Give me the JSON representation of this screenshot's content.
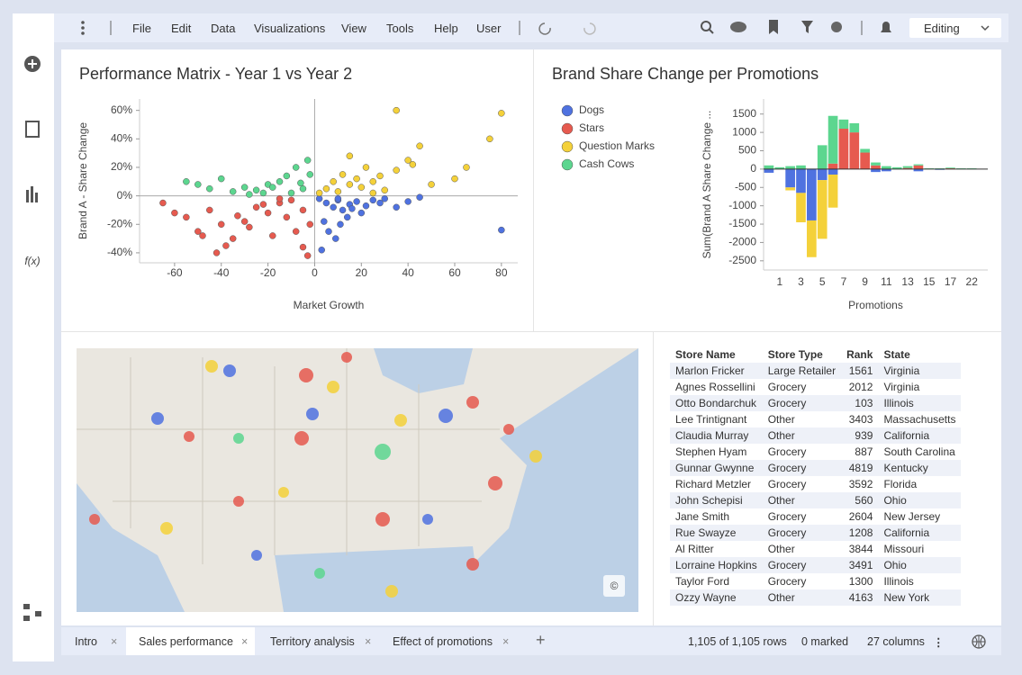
{
  "menu": {
    "items": [
      "File",
      "Edit",
      "Data",
      "Visualizations",
      "View",
      "Tools",
      "Help",
      "User"
    ],
    "mode": "Editing"
  },
  "chart_data": [
    {
      "type": "scatter",
      "title": "Performance Matrix - Year 1 vs Year 2",
      "x_label": "Market Growth",
      "y_label": "Brand A - Share Change",
      "xlim": [
        -75,
        87
      ],
      "xticks": [
        -60,
        -40,
        -20,
        0,
        20,
        40,
        60,
        80
      ],
      "ylim": [
        -47,
        68
      ],
      "yticks": [
        {
          "value": 60,
          "label": "60%"
        },
        {
          "value": 40,
          "label": "40%"
        },
        {
          "value": 20,
          "label": "20%"
        },
        {
          "value": 0,
          "label": "0%"
        },
        {
          "value": -20,
          "label": "-20%"
        },
        {
          "value": -40,
          "label": "-40%"
        }
      ],
      "series": [
        {
          "name": "Dogs",
          "color": "#4f72e0",
          "x": [
            2,
            5,
            8,
            10,
            12,
            15,
            18,
            20,
            22,
            25,
            28,
            30,
            35,
            4,
            6,
            14,
            9,
            3,
            11,
            16,
            40,
            80,
            10,
            45
          ],
          "y": [
            -2,
            -5,
            -8,
            -3,
            -10,
            -6,
            -4,
            -12,
            -7,
            -3,
            -5,
            -2,
            -8,
            -18,
            -25,
            -15,
            -30,
            -38,
            -20,
            -9,
            -4,
            -24,
            -2,
            -1
          ]
        },
        {
          "name": "Stars",
          "color": "#e65a4f",
          "x": [
            -65,
            -55,
            -50,
            -45,
            -40,
            -35,
            -30,
            -25,
            -20,
            -15,
            -10,
            -5,
            -2,
            -8,
            -12,
            -18,
            -22,
            -28,
            -38,
            -48,
            -60,
            -42,
            -5,
            -3,
            -15,
            -33
          ],
          "y": [
            -5,
            -15,
            -25,
            -10,
            -20,
            -30,
            -18,
            -8,
            -12,
            -5,
            -3,
            -10,
            -20,
            -25,
            -15,
            -28,
            -6,
            -22,
            -35,
            -28,
            -12,
            -40,
            -36,
            -42,
            -2,
            -14
          ]
        },
        {
          "name": "Question Marks",
          "color": "#f4d13a",
          "x": [
            2,
            5,
            8,
            10,
            12,
            15,
            18,
            20,
            22,
            25,
            28,
            30,
            35,
            40,
            45,
            50,
            60,
            65,
            75,
            80,
            35,
            42,
            15,
            25
          ],
          "y": [
            2,
            5,
            10,
            3,
            15,
            8,
            12,
            6,
            20,
            10,
            14,
            4,
            18,
            25,
            35,
            8,
            12,
            20,
            40,
            58,
            60,
            22,
            28,
            2
          ]
        },
        {
          "name": "Cash Cows",
          "color": "#5cd68f",
          "x": [
            -55,
            -50,
            -45,
            -40,
            -35,
            -30,
            -25,
            -20,
            -15,
            -10,
            -5,
            -2,
            -8,
            -12,
            -18,
            -22,
            -28,
            -3,
            -6
          ],
          "y": [
            10,
            8,
            5,
            12,
            3,
            6,
            4,
            8,
            10,
            2,
            5,
            15,
            20,
            14,
            6,
            2,
            1,
            25,
            9
          ]
        }
      ]
    },
    {
      "type": "bar",
      "title": "Brand Share Change per Promotions",
      "x_label": "Promotions",
      "y_label": "Sum(Brand A Share Change ...",
      "categories": [
        null,
        "1",
        null,
        "3",
        null,
        "5",
        null,
        "7",
        null,
        "9",
        null,
        "11",
        null,
        "13",
        null,
        "15",
        null,
        "17",
        null,
        "22",
        null
      ],
      "ylim": [
        -2750,
        1910
      ],
      "yticks": [
        1500,
        1000,
        500,
        0,
        -500,
        -1000,
        -1500,
        -2000,
        -2500
      ],
      "series": [
        {
          "name": "Dogs",
          "color": "#4f72e0",
          "values": [
            -100,
            0,
            -500,
            -650,
            -1400,
            -300,
            -150,
            0,
            0,
            0,
            -80,
            -60,
            0,
            0,
            -60,
            0,
            -20,
            0,
            0,
            0,
            0
          ]
        },
        {
          "name": "Stars",
          "color": "#e65a4f",
          "values": [
            0,
            0,
            0,
            0,
            0,
            0,
            150,
            1100,
            1000,
            450,
            100,
            0,
            0,
            30,
            100,
            0,
            0,
            20,
            0,
            0,
            0
          ]
        },
        {
          "name": "Question Marks",
          "color": "#f4d13a",
          "values": [
            0,
            0,
            -80,
            -800,
            -1000,
            -1600,
            -900,
            0,
            0,
            0,
            0,
            0,
            0,
            0,
            0,
            0,
            0,
            0,
            0,
            0,
            0
          ]
        },
        {
          "name": "Cash Cows",
          "color": "#5cd68f",
          "values": [
            100,
            50,
            80,
            100,
            0,
            650,
            1300,
            250,
            250,
            100,
            80,
            80,
            50,
            50,
            30,
            20,
            20,
            20,
            20,
            20,
            0
          ]
        }
      ]
    }
  ],
  "map": {
    "attribution": "©"
  },
  "table": {
    "header": [
      "Store Name",
      "Store Type",
      "Rank",
      "State"
    ],
    "rows": [
      [
        "Marlon Fricker",
        "Large Retailer",
        1561,
        "Virginia"
      ],
      [
        "Agnes Rossellini",
        "Grocery",
        2012,
        "Virginia"
      ],
      [
        "Otto Bondarchuk",
        "Grocery",
        103,
        "Illinois"
      ],
      [
        "Lee Trintignant",
        "Other",
        3403,
        "Massachusetts"
      ],
      [
        "Claudia Murray",
        "Other",
        939,
        "California"
      ],
      [
        "Stephen Hyam",
        "Grocery",
        887,
        "South Carolina"
      ],
      [
        "Gunnar Gwynne",
        "Grocery",
        4819,
        "Kentucky"
      ],
      [
        "Richard Metzler",
        "Grocery",
        3592,
        "Florida"
      ],
      [
        "John Schepisi",
        "Other",
        560,
        "Ohio"
      ],
      [
        "Jane Smith",
        "Grocery",
        2604,
        "New Jersey"
      ],
      [
        "Rue Swayze",
        "Grocery",
        1208,
        "California"
      ],
      [
        "Al Ritter",
        "Other",
        3844,
        "Missouri"
      ],
      [
        "Lorraine Hopkins",
        "Grocery",
        3491,
        "Ohio"
      ],
      [
        "Taylor Ford",
        "Grocery",
        1300,
        "Illinois"
      ],
      [
        "Ozzy Wayne",
        "Other",
        4163,
        "New York"
      ]
    ]
  },
  "tabs": [
    "Intro",
    "Sales performance",
    "Territory analysis",
    "Effect of promotions"
  ],
  "status": {
    "rows": "1,105 of 1,105 rows",
    "marked": "0 marked",
    "columns": "27 columns"
  }
}
